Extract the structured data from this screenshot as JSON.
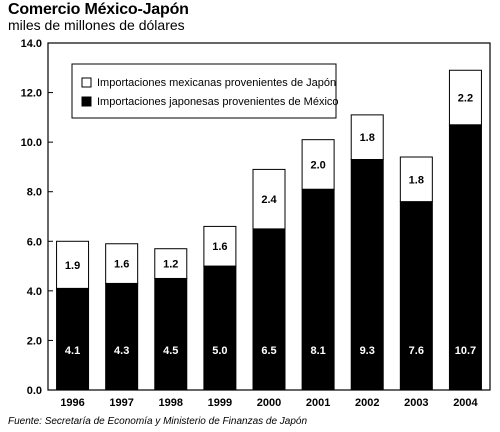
{
  "title": "Comercio México-Japón",
  "subtitle": "miles de millones de dólares",
  "source": "Fuente: Secretaría de Economía y Ministerio de Finanzas de Japón",
  "colors": {
    "import_mx": "#ffffff",
    "import_jp": "#000000",
    "background": "#ffffff"
  },
  "chart_data": {
    "type": "bar",
    "stacked": true,
    "categories": [
      "1996",
      "1997",
      "1998",
      "1999",
      "2000",
      "2001",
      "2002",
      "2003",
      "2004"
    ],
    "series": [
      {
        "name": "Importaciones japonesas provenientes de México",
        "fill": "black",
        "values": [
          4.1,
          4.3,
          4.5,
          5.0,
          6.5,
          8.1,
          9.3,
          7.6,
          10.7
        ]
      },
      {
        "name": "Importaciones mexicanas provenientes de Japón",
        "fill": "white",
        "values": [
          1.9,
          1.6,
          1.2,
          1.6,
          2.4,
          2.0,
          1.8,
          1.8,
          2.2
        ]
      }
    ],
    "value_labels_bottom": [
      "4.1",
      "4.3",
      "4.5",
      "5.0",
      "6.5",
      "8.1",
      "9.3",
      "7.6",
      "10.7"
    ],
    "value_labels_top": [
      "1.9",
      "1.6",
      "1.2",
      "1.6",
      "2.4",
      "2.0",
      "1.8",
      "1.8",
      "2.2"
    ],
    "y_ticks": [
      "0.0",
      "2.0",
      "4.0",
      "6.0",
      "8.0",
      "10.0",
      "12.0",
      "14.0"
    ],
    "ylim": [
      0,
      14
    ],
    "legend": [
      "Importaciones mexicanas provenientes de Japón",
      "Importaciones japonesas provenientes de México"
    ],
    "legend_position": "top-left",
    "grid": false
  }
}
